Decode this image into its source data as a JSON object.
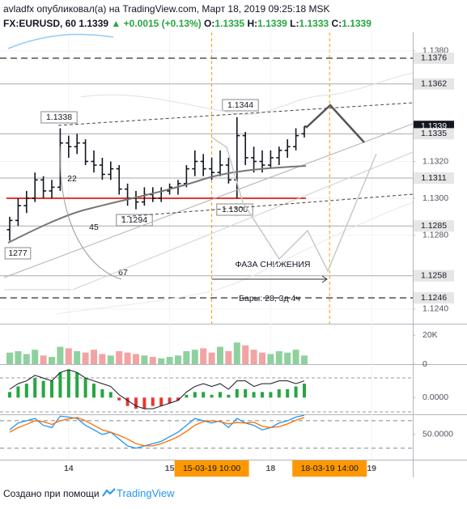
{
  "header": {
    "user": "avladfx",
    "published": "опубликовал(а) на TradingView.com, Март 18, 2019 09:25:18 MSK",
    "symbol": "FX:EURUSD, 60",
    "last": "1.1339",
    "change": "▲ +0.0015 (+0.13%)",
    "o_label": "O:",
    "o": "1.1335",
    "h_label": "H:",
    "h": "1.1339",
    "l_label": "L:",
    "l": "1.1333",
    "c_label": "C:",
    "c": "1.1339"
  },
  "chart_data": [
    {
      "type": "ohlc",
      "color": "#131722",
      "categories": [
        null,
        null,
        null,
        null,
        null,
        null,
        null,
        "14",
        null,
        null,
        null,
        null,
        null,
        null,
        null,
        null,
        null,
        null,
        null,
        "15",
        null,
        null,
        null,
        null,
        "15-03-19 10:00",
        null,
        null,
        null,
        null,
        null,
        null,
        "18",
        null,
        null,
        null,
        null,
        null,
        null,
        "18-03-19 14:00",
        null,
        null,
        null,
        null,
        "19",
        null
      ],
      "open": [
        1.1283,
        1.1288,
        1.1296,
        1.13,
        1.131,
        1.1304,
        1.1306,
        1.133,
        1.1328,
        1.133,
        1.132,
        1.1318,
        1.1313,
        1.1316,
        1.1305,
        1.13,
        1.1298,
        1.1302,
        1.13,
        1.1304,
        1.1306,
        1.1308,
        1.1316,
        1.132,
        1.1316,
        1.1314,
        1.1318,
        1.131,
        1.1334,
        1.1322,
        1.132,
        1.1318,
        1.1322,
        1.1326,
        1.1328,
        1.1335,
        null,
        null,
        null,
        null,
        null,
        null,
        null,
        null,
        null
      ],
      "high": [
        1.129,
        1.13,
        1.1304,
        1.1314,
        1.1312,
        1.131,
        1.1338,
        1.1334,
        1.1335,
        1.1332,
        1.1326,
        1.1322,
        1.132,
        1.1318,
        1.1308,
        1.1304,
        1.1306,
        1.1306,
        1.1306,
        1.1308,
        1.131,
        1.1318,
        1.1326,
        1.1324,
        1.1322,
        1.1326,
        1.1322,
        1.1344,
        1.1336,
        1.1328,
        1.1326,
        1.1326,
        1.1328,
        1.1332,
        1.1338,
        1.1339,
        null,
        null,
        null,
        null,
        null,
        null,
        null,
        null,
        null
      ],
      "low": [
        1.1277,
        1.1285,
        1.1292,
        1.1298,
        1.13,
        1.13,
        1.1304,
        1.1322,
        1.1324,
        1.1318,
        1.1314,
        1.131,
        1.131,
        1.1302,
        1.1296,
        1.1294,
        1.1296,
        1.1298,
        1.1298,
        1.1302,
        1.1302,
        1.1306,
        1.1312,
        1.1312,
        1.131,
        1.1312,
        1.1308,
        1.13,
        1.1318,
        1.1314,
        1.1314,
        1.1316,
        1.1318,
        1.1322,
        1.1326,
        1.1333,
        null,
        null,
        null,
        null,
        null,
        null,
        null,
        null,
        null
      ],
      "close": [
        1.1288,
        1.1296,
        1.13,
        1.131,
        1.1304,
        1.1306,
        1.133,
        1.1328,
        1.133,
        1.132,
        1.1318,
        1.1313,
        1.1316,
        1.1305,
        1.13,
        1.1298,
        1.1302,
        1.13,
        1.1304,
        1.1306,
        1.1308,
        1.1316,
        1.132,
        1.1316,
        1.1314,
        1.1318,
        1.131,
        1.1334,
        1.1322,
        1.132,
        1.1318,
        1.1322,
        1.1326,
        1.1328,
        1.1334,
        1.1339,
        null,
        null,
        null,
        null,
        null,
        null,
        null,
        null,
        null
      ],
      "ylim": [
        1.1232,
        1.139
      ],
      "yticks": [
        {
          "value": 1.124,
          "label": "1.1240"
        },
        {
          "value": 1.128,
          "label": "1.1280"
        },
        {
          "value": 1.13,
          "label": "1.1300"
        },
        {
          "value": 1.132,
          "label": "1.1320"
        },
        {
          "value": 1.138,
          "label": "1.1380"
        }
      ],
      "grid": true,
      "levels": [
        {
          "value": 1.1376,
          "line": "dashed"
        },
        {
          "value": 1.1362,
          "line": "solid"
        },
        {
          "value": 1.1339,
          "line": null,
          "highlight": true
        },
        {
          "value": 1.1335,
          "line": "solid"
        },
        {
          "value": 1.1311,
          "line": "solid"
        },
        {
          "value": 1.1285,
          "line": "solid"
        },
        {
          "value": 1.1258,
          "line": "solid"
        },
        {
          "value": 1.1246,
          "line": "dashed"
        }
      ],
      "annotations": [
        "1.1338",
        "1.1344",
        "1.1294",
        "1.1300",
        "1277",
        "22",
        "45",
        "67",
        "ФАЗА СНИЖЕНИЯ",
        "Бары: 28, 3д 4ч"
      ]
    },
    {
      "type": "bar",
      "up_color": "#8fd19e",
      "down_color": "#f2a3a3",
      "values": [
        8000,
        9000,
        7000,
        10000,
        6000,
        5000,
        12000,
        11000,
        9000,
        8000,
        10000,
        7000,
        6000,
        9000,
        8000,
        7000,
        6000,
        5000,
        4000,
        5000,
        6000,
        9000,
        10000,
        11000,
        8000,
        12000,
        9000,
        15000,
        13000,
        10000,
        8000,
        7000,
        9000,
        8000,
        10000,
        6000
      ],
      "ylim": [
        0,
        28000
      ],
      "yticks": [
        0,
        {
          "value": 20000,
          "label": "20K"
        }
      ]
    },
    {
      "type": "macd",
      "up_color": "#26a641",
      "down_color": "#e53935",
      "line_color": "#131722",
      "values": [
        0.0002,
        0.0004,
        0.0005,
        0.0007,
        0.0006,
        0.0006,
        0.0009,
        0.001,
        0.0009,
        0.0007,
        0.0005,
        0.0003,
        0.0002,
        -0.0001,
        -0.0003,
        -0.0004,
        -0.0004,
        -0.0003,
        -0.0003,
        -0.0002,
        -0.0001,
        0.0001,
        0.0002,
        0.0002,
        0.0001,
        0.0002,
        0.0001,
        0.0003,
        0.0003,
        0.0002,
        0.0002,
        0.0002,
        0.0003,
        0.0003,
        0.0004,
        0.0005
      ],
      "line": [
        0.0003,
        0.0005,
        0.0006,
        0.0008,
        0.0007,
        0.0006,
        0.0009,
        0.001,
        0.0009,
        0.0007,
        0.0006,
        0.0005,
        0.0004,
        0.0001,
        -0.0001,
        -0.0003,
        -0.0004,
        -0.0004,
        -0.0003,
        -0.0002,
        -0.0001,
        0.0002,
        0.0004,
        0.0005,
        0.0004,
        0.0005,
        0.0003,
        0.0006,
        0.0006,
        0.0004,
        0.0005,
        0.0005,
        0.0006,
        0.0006,
        0.0005,
        0.0006
      ],
      "ylim": [
        -0.0006,
        0.0012
      ],
      "yticks": [
        {
          "value": 0,
          "label": "0.0000"
        }
      ]
    },
    {
      "type": "line",
      "series": [
        {
          "color": "#2196f3",
          "values": [
            60,
            75,
            80,
            85,
            70,
            65,
            90,
            88,
            85,
            70,
            60,
            50,
            55,
            40,
            25,
            20,
            25,
            30,
            35,
            45,
            55,
            70,
            85,
            80,
            75,
            80,
            65,
            85,
            75,
            70,
            60,
            65,
            75,
            80,
            88,
            92
          ]
        },
        {
          "color": "#ff6d00",
          "values": [
            55,
            65,
            72,
            80,
            78,
            72,
            80,
            84,
            87,
            80,
            70,
            60,
            55,
            48,
            40,
            30,
            25,
            25,
            30,
            37,
            45,
            57,
            70,
            78,
            80,
            78,
            73,
            76,
            75,
            77,
            68,
            65,
            67,
            73,
            81,
            87
          ]
        }
      ],
      "ylim": [
        -5,
        94
      ],
      "yticks": [
        {
          "value": 50,
          "label": "50.0000"
        }
      ],
      "levels": [
        20,
        80
      ]
    }
  ],
  "footer": {
    "text": "Создано при помощи",
    "brand": "TradingView"
  }
}
